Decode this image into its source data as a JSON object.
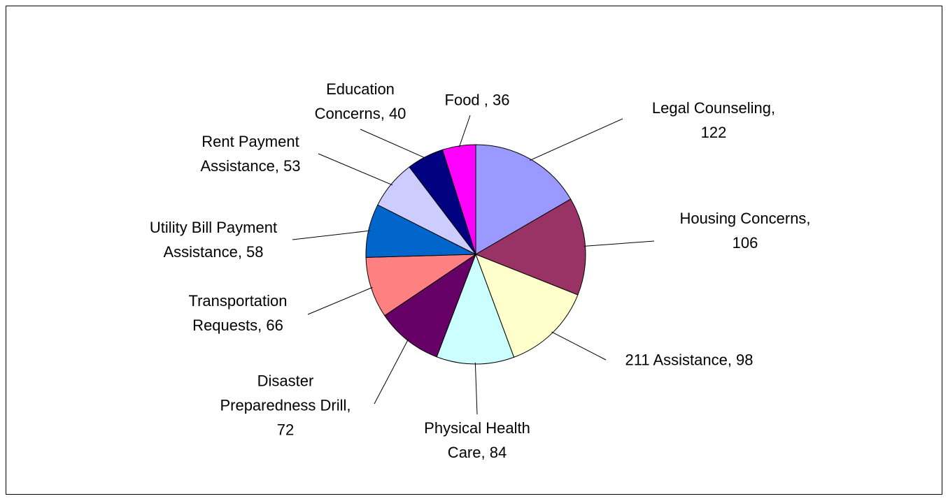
{
  "chart_data": {
    "type": "pie",
    "values": [
      122,
      106,
      98,
      84,
      72,
      66,
      58,
      53,
      40,
      36
    ],
    "value_labels": [
      "Legal Counseling,\n122",
      "Housing Concerns,\n106",
      "211 Assistance, 98",
      "Physical Health\nCare, 84",
      "Disaster\nPreparedness Drill,\n72",
      "Transportation\nRequests, 66",
      "Utility Bill Payment\nAssistance, 58",
      "Rent Payment\nAssistance, 53",
      "Education\nConcerns, 40",
      "Food , 36"
    ],
    "colors": [
      "#9999ff",
      "#993366",
      "#ffffcc",
      "#ccffff",
      "#660066",
      "#ff8080",
      "#0066cc",
      "#ccccff",
      "#000080",
      "#ff00ff"
    ]
  }
}
